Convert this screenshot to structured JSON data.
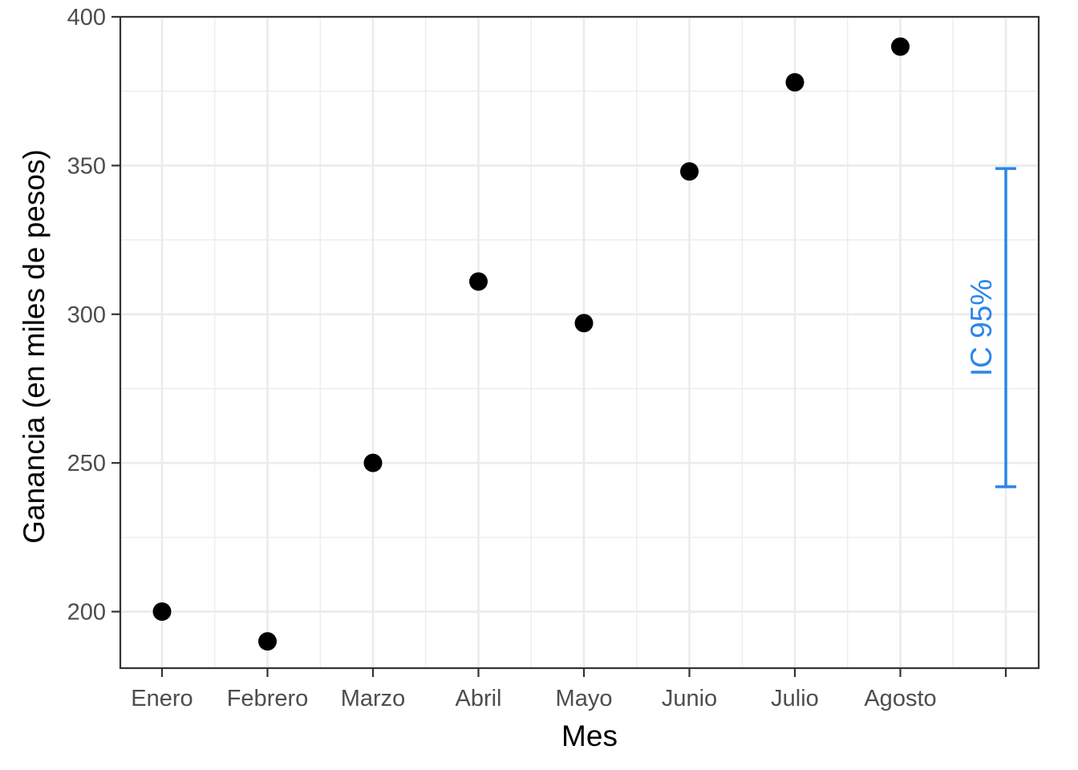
{
  "chart_data": {
    "type": "scatter",
    "categories": [
      "Enero",
      "Febrero",
      "Marzo",
      "Abril",
      "Mayo",
      "Junio",
      "Julio",
      "Agosto"
    ],
    "values": [
      200,
      190,
      250,
      311,
      297,
      348,
      378,
      390
    ],
    "xlabel": "Mes",
    "ylabel": "Ganancia (en miles de pesos)",
    "ylim": [
      181,
      400
    ],
    "yticks": [
      200,
      250,
      300,
      350,
      400
    ],
    "grid": true,
    "point_color": "#000000",
    "annotation": {
      "label": "IC 95%",
      "low": 242,
      "high": 349,
      "color": "#2a86e8"
    }
  }
}
